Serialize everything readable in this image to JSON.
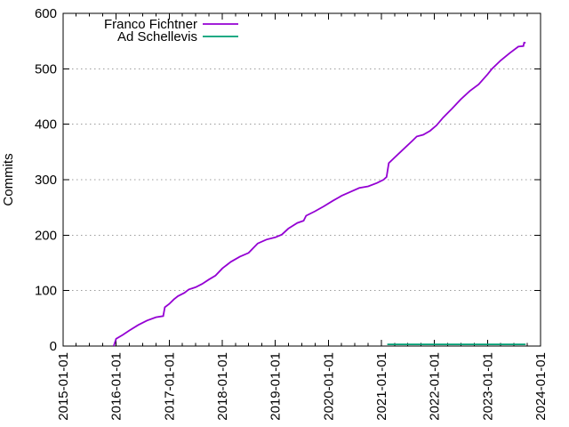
{
  "chart": {
    "background": "#ffffff",
    "border_color": "#000000",
    "grid_color": "#9c9c9c",
    "text_color": "#000000"
  },
  "chart_data": {
    "type": "line",
    "title": "",
    "xlabel": "",
    "ylabel": "Commits",
    "ylim": [
      0,
      600
    ],
    "yticks": [
      0,
      100,
      200,
      300,
      400,
      500,
      600
    ],
    "xticks": [
      "2015-01-01",
      "2016-01-01",
      "2017-01-01",
      "2018-01-01",
      "2019-01-01",
      "2020-01-01",
      "2021-01-01",
      "2022-01-01",
      "2023-01-01",
      "2024-01-01"
    ],
    "xtick_rotation": -90,
    "minor_xticks_per_year": 3,
    "grid": "horizontal-dotted",
    "legend_position": "top-inside",
    "series": [
      {
        "name": "Franco Fichtner",
        "color": "#9400d3",
        "points": [
          [
            "2015-12-15",
            0
          ],
          [
            "2016-01-01",
            13
          ],
          [
            "2016-02-15",
            20
          ],
          [
            "2016-04-01",
            28
          ],
          [
            "2016-06-01",
            38
          ],
          [
            "2016-08-01",
            46
          ],
          [
            "2016-10-01",
            52
          ],
          [
            "2016-11-20",
            54
          ],
          [
            "2016-12-01",
            70
          ],
          [
            "2017-01-01",
            76
          ],
          [
            "2017-02-01",
            84
          ],
          [
            "2017-03-01",
            90
          ],
          [
            "2017-04-15",
            96
          ],
          [
            "2017-05-15",
            102
          ],
          [
            "2017-07-01",
            106
          ],
          [
            "2017-08-15",
            112
          ],
          [
            "2017-10-01",
            120
          ],
          [
            "2017-11-15",
            127
          ],
          [
            "2018-01-01",
            140
          ],
          [
            "2018-03-01",
            152
          ],
          [
            "2018-05-01",
            161
          ],
          [
            "2018-07-01",
            168
          ],
          [
            "2018-09-01",
            185
          ],
          [
            "2018-11-01",
            192
          ],
          [
            "2019-01-01",
            196
          ],
          [
            "2019-02-15",
            201
          ],
          [
            "2019-04-01",
            212
          ],
          [
            "2019-06-01",
            222
          ],
          [
            "2019-07-15",
            226
          ],
          [
            "2019-08-01",
            235
          ],
          [
            "2019-10-01",
            243
          ],
          [
            "2019-12-01",
            252
          ],
          [
            "2020-02-01",
            262
          ],
          [
            "2020-04-01",
            271
          ],
          [
            "2020-06-01",
            278
          ],
          [
            "2020-08-01",
            285
          ],
          [
            "2020-10-01",
            288
          ],
          [
            "2020-12-01",
            294
          ],
          [
            "2021-01-15",
            300
          ],
          [
            "2021-02-05",
            305
          ],
          [
            "2021-02-20",
            330
          ],
          [
            "2021-04-01",
            340
          ],
          [
            "2021-06-01",
            355
          ],
          [
            "2021-08-01",
            370
          ],
          [
            "2021-09-01",
            378
          ],
          [
            "2021-10-15",
            381
          ],
          [
            "2021-12-01",
            388
          ],
          [
            "2022-01-15",
            398
          ],
          [
            "2022-03-01",
            412
          ],
          [
            "2022-05-01",
            428
          ],
          [
            "2022-07-01",
            445
          ],
          [
            "2022-09-01",
            460
          ],
          [
            "2022-11-01",
            472
          ],
          [
            "2023-01-01",
            490
          ],
          [
            "2023-02-01",
            500
          ],
          [
            "2023-04-01",
            515
          ],
          [
            "2023-06-01",
            528
          ],
          [
            "2023-08-01",
            540
          ],
          [
            "2023-09-05",
            541
          ],
          [
            "2023-09-10",
            547
          ],
          [
            "2023-09-20",
            547
          ]
        ]
      },
      {
        "name": "Ad Schellevis",
        "color": "#009e73",
        "points": [
          [
            "2021-02-10",
            3
          ],
          [
            "2022-01-01",
            3
          ],
          [
            "2023-01-01",
            3
          ],
          [
            "2023-09-20",
            3
          ]
        ]
      }
    ]
  }
}
